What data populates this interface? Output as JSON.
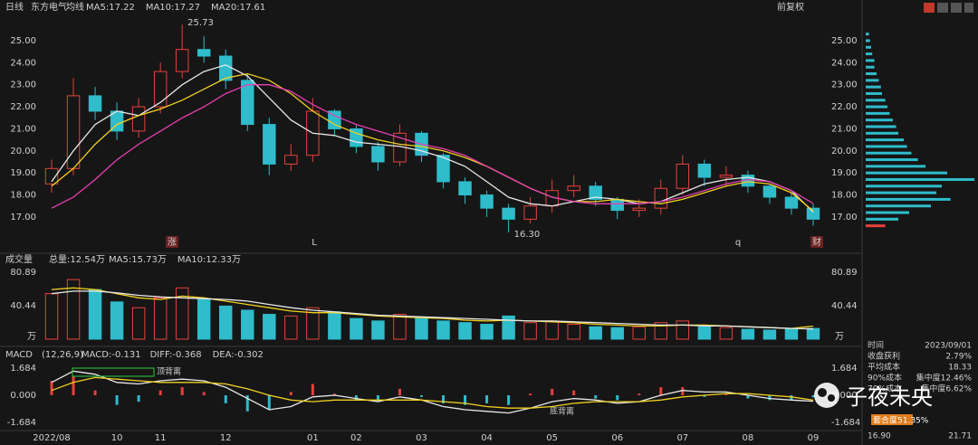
{
  "header": {
    "period": "日线",
    "stock": "东方电气",
    "ma_label": "均线",
    "adjust": "前复权"
  },
  "chart_data": [
    {
      "type": "candlestick",
      "categories": [
        "2022/08",
        null,
        null,
        "10",
        null,
        "11",
        null,
        null,
        "12",
        null,
        null,
        null,
        "01",
        null,
        "02",
        null,
        null,
        "03",
        null,
        null,
        "04",
        null,
        null,
        "05",
        null,
        null,
        "06",
        null,
        null,
        "07",
        null,
        null,
        "08",
        null,
        null,
        "09"
      ],
      "open": [
        18.5,
        19.2,
        22.5,
        21.8,
        20.9,
        22.0,
        23.6,
        24.6,
        24.3,
        23.2,
        21.2,
        19.4,
        19.8,
        21.8,
        21.0,
        20.2,
        19.5,
        20.8,
        19.8,
        18.6,
        18.0,
        17.4,
        16.9,
        17.5,
        18.2,
        18.4,
        17.8,
        17.3,
        17.4,
        18.3,
        19.4,
        18.8,
        18.9,
        18.4,
        17.9,
        17.4
      ],
      "high": [
        19.6,
        23.3,
        22.9,
        22.2,
        22.4,
        24.0,
        25.73,
        25.2,
        24.6,
        23.5,
        21.5,
        20.3,
        22.4,
        21.9,
        21.2,
        20.4,
        21.2,
        20.9,
        19.9,
        18.8,
        18.2,
        17.6,
        17.9,
        18.7,
        18.9,
        18.6,
        17.9,
        17.8,
        18.7,
        19.8,
        19.6,
        19.3,
        19.1,
        18.5,
        18.1,
        17.6
      ],
      "low": [
        18.1,
        18.9,
        21.4,
        20.5,
        20.6,
        21.7,
        23.3,
        24.0,
        22.8,
        20.9,
        18.9,
        19.1,
        19.5,
        20.7,
        19.9,
        19.1,
        19.3,
        19.5,
        18.3,
        17.6,
        17.0,
        16.3,
        16.7,
        17.2,
        17.9,
        17.5,
        16.9,
        17.0,
        17.1,
        18.0,
        18.4,
        18.4,
        18.1,
        17.6,
        17.1,
        16.6
      ],
      "close": [
        19.2,
        22.5,
        21.8,
        20.9,
        22.0,
        23.6,
        24.6,
        24.3,
        23.2,
        21.2,
        19.4,
        19.8,
        21.8,
        21.0,
        20.2,
        19.5,
        20.8,
        19.8,
        18.6,
        18.0,
        17.4,
        16.9,
        17.5,
        18.2,
        18.4,
        17.8,
        17.3,
        17.4,
        18.3,
        19.4,
        18.8,
        18.9,
        18.4,
        17.9,
        17.4,
        16.9
      ],
      "up_color": "#e8413c",
      "down_color": "#2fbccb",
      "series": [
        {
          "name": "MA5:17.22",
          "color": "#e8e8e8",
          "values": [
            18.6,
            20.0,
            21.2,
            21.8,
            21.6,
            22.2,
            23.0,
            23.6,
            23.9,
            23.4,
            22.4,
            21.4,
            20.8,
            20.7,
            20.4,
            20.3,
            20.2,
            20.0,
            19.7,
            19.3,
            18.6,
            17.9,
            17.6,
            17.5,
            17.7,
            17.9,
            17.8,
            17.6,
            17.7,
            18.1,
            18.5,
            18.7,
            18.8,
            18.6,
            18.2,
            17.22
          ]
        },
        {
          "name": "MA10:17.27",
          "color": "#f2d01e",
          "values": [
            18.4,
            19.2,
            20.3,
            21.2,
            21.6,
            21.9,
            22.3,
            22.8,
            23.3,
            23.5,
            23.2,
            22.6,
            21.8,
            21.2,
            20.8,
            20.5,
            20.3,
            20.2,
            20.0,
            19.7,
            19.3,
            18.8,
            18.3,
            17.9,
            17.7,
            17.7,
            17.8,
            17.7,
            17.6,
            17.8,
            18.1,
            18.4,
            18.6,
            18.5,
            18.1,
            17.27
          ]
        },
        {
          "name": "MA20:17.61",
          "color": "#e83fb4",
          "values": [
            17.4,
            17.9,
            18.7,
            19.6,
            20.3,
            20.9,
            21.5,
            22.0,
            22.6,
            23.0,
            23.0,
            22.7,
            22.1,
            21.6,
            21.2,
            20.9,
            20.6,
            20.3,
            20.1,
            19.8,
            19.3,
            18.8,
            18.3,
            17.9,
            17.7,
            17.6,
            17.6,
            17.6,
            17.7,
            17.9,
            18.2,
            18.5,
            18.7,
            18.6,
            18.2,
            17.61
          ]
        }
      ],
      "ylim": [
        15.56,
        26.23
      ],
      "yticks": [
        {
          "value": 17,
          "label": "17.00"
        },
        {
          "value": 18,
          "label": "18.00"
        },
        {
          "value": 19,
          "label": "19.00"
        },
        {
          "value": 20,
          "label": "20.00"
        },
        {
          "value": 21,
          "label": "21.00"
        },
        {
          "value": 22,
          "label": "22.00"
        },
        {
          "value": 23,
          "label": "23.00"
        },
        {
          "value": 24,
          "label": "24.00"
        },
        {
          "value": 25,
          "label": "25.00"
        }
      ],
      "high_mark": {
        "value": 25.73,
        "label": "25.73"
      },
      "low_mark": {
        "value": 16.3,
        "label": "16.30"
      },
      "event_markers": [
        "涨",
        "L",
        "q",
        "财"
      ]
    },
    {
      "type": "volume",
      "title": "成交量",
      "total": "总量:12.54万",
      "unit": "万",
      "values": [
        55,
        72,
        60,
        45,
        38,
        50,
        62,
        48,
        40,
        35,
        30,
        28,
        38,
        33,
        25,
        22,
        30,
        26,
        22,
        20,
        18,
        28,
        20,
        22,
        18,
        15,
        14,
        15,
        20,
        22,
        15,
        14,
        12,
        11,
        12,
        13
      ],
      "series": [
        {
          "name": "MA5:15.73万",
          "color": "#f2d01e",
          "values": [
            60,
            62,
            60,
            55,
            50,
            48,
            52,
            50,
            46,
            42,
            38,
            34,
            32,
            32,
            30,
            28,
            27,
            26,
            25,
            23,
            22,
            23,
            22,
            21,
            20,
            18,
            17,
            16,
            16,
            17,
            17,
            16,
            15,
            14,
            13,
            15.73
          ]
        },
        {
          "name": "MA10:12.33万",
          "color": "#e8e8e8",
          "values": [
            55,
            58,
            58,
            56,
            53,
            51,
            50,
            49,
            48,
            46,
            42,
            38,
            35,
            33,
            31,
            29,
            28,
            27,
            26,
            25,
            24,
            23,
            22,
            22,
            21,
            20,
            19,
            18,
            17,
            17,
            16,
            16,
            15,
            14,
            13,
            12.33
          ]
        }
      ],
      "ylim": [
        0,
        92.9
      ],
      "yticks": [
        40.44,
        80.89
      ]
    },
    {
      "type": "macd",
      "title": "MACD",
      "params": "(12,26,9)",
      "histogram": {
        "name": "MACD:-0.131",
        "values": [
          0.9,
          1.2,
          0.3,
          -0.6,
          -0.4,
          0.3,
          0.5,
          0.2,
          -0.5,
          -1.0,
          -0.9,
          0.2,
          0.7,
          0.1,
          -0.3,
          -0.4,
          0.4,
          -0.1,
          -0.5,
          -0.6,
          -0.5,
          -0.6,
          0.1,
          0.4,
          0.3,
          -0.2,
          -0.3,
          0.1,
          0.5,
          0.5,
          -0.1,
          0.1,
          -0.2,
          -0.3,
          -0.3,
          -0.131
        ]
      },
      "series": [
        {
          "name": "DIFF:-0.368",
          "color": "#e8e8e8",
          "values": [
            0.8,
            1.5,
            1.3,
            0.8,
            0.7,
            0.9,
            1.0,
            0.9,
            0.5,
            -0.2,
            -0.9,
            -0.7,
            -0.1,
            0.0,
            -0.2,
            -0.4,
            -0.1,
            -0.3,
            -0.7,
            -0.9,
            -1.0,
            -1.1,
            -0.8,
            -0.4,
            -0.2,
            -0.3,
            -0.5,
            -0.4,
            0.0,
            0.3,
            0.2,
            0.2,
            0.0,
            -0.2,
            -0.3,
            -0.368
          ]
        },
        {
          "name": "DEA:-0.302",
          "color": "#f2d01e",
          "values": [
            0.3,
            0.8,
            1.1,
            1.0,
            0.9,
            0.8,
            0.8,
            0.8,
            0.7,
            0.4,
            0.0,
            -0.3,
            -0.4,
            -0.3,
            -0.3,
            -0.3,
            -0.3,
            -0.3,
            -0.4,
            -0.5,
            -0.7,
            -0.8,
            -0.8,
            -0.7,
            -0.5,
            -0.4,
            -0.4,
            -0.4,
            -0.3,
            -0.1,
            0.0,
            0.1,
            0.1,
            0.0,
            -0.1,
            -0.302
          ]
        }
      ],
      "ylim": [
        -2.19,
        2.19
      ],
      "yticks": [
        -1.684,
        {
          "value": 0,
          "label": "0.000"
        },
        1.684
      ],
      "annotations": [
        "顶背离",
        "底背离"
      ]
    }
  ],
  "chips": {
    "prices": [
      25.3,
      25.0,
      24.7,
      24.4,
      24.1,
      23.8,
      23.5,
      23.2,
      22.9,
      22.6,
      22.3,
      22.0,
      21.7,
      21.4,
      21.1,
      20.8,
      20.5,
      20.2,
      19.9,
      19.6,
      19.3,
      19.0,
      18.7,
      18.4,
      18.1,
      17.8,
      17.5,
      17.2,
      16.9,
      16.6
    ],
    "values": [
      3,
      4,
      5,
      6,
      8,
      8,
      10,
      12,
      14,
      15,
      18,
      20,
      22,
      25,
      28,
      30,
      35,
      38,
      42,
      48,
      55,
      75,
      100,
      70,
      65,
      78,
      60,
      40,
      30,
      18
    ],
    "xlim": [
      0,
      100
    ]
  },
  "side_panel": {
    "rows": [
      [
        "时间",
        "2023/09/01"
      ],
      [
        "收盘获利",
        "2.79%"
      ],
      [
        "平均成本",
        "18.33"
      ],
      [
        "90%成本",
        "集中度12.46%"
      ],
      [
        "70%成本",
        "集中度6.62%"
      ]
    ],
    "ratio": "套合度51.35%",
    "range": [
      "16.90",
      "21.71"
    ]
  },
  "watermark": "子夜未央"
}
